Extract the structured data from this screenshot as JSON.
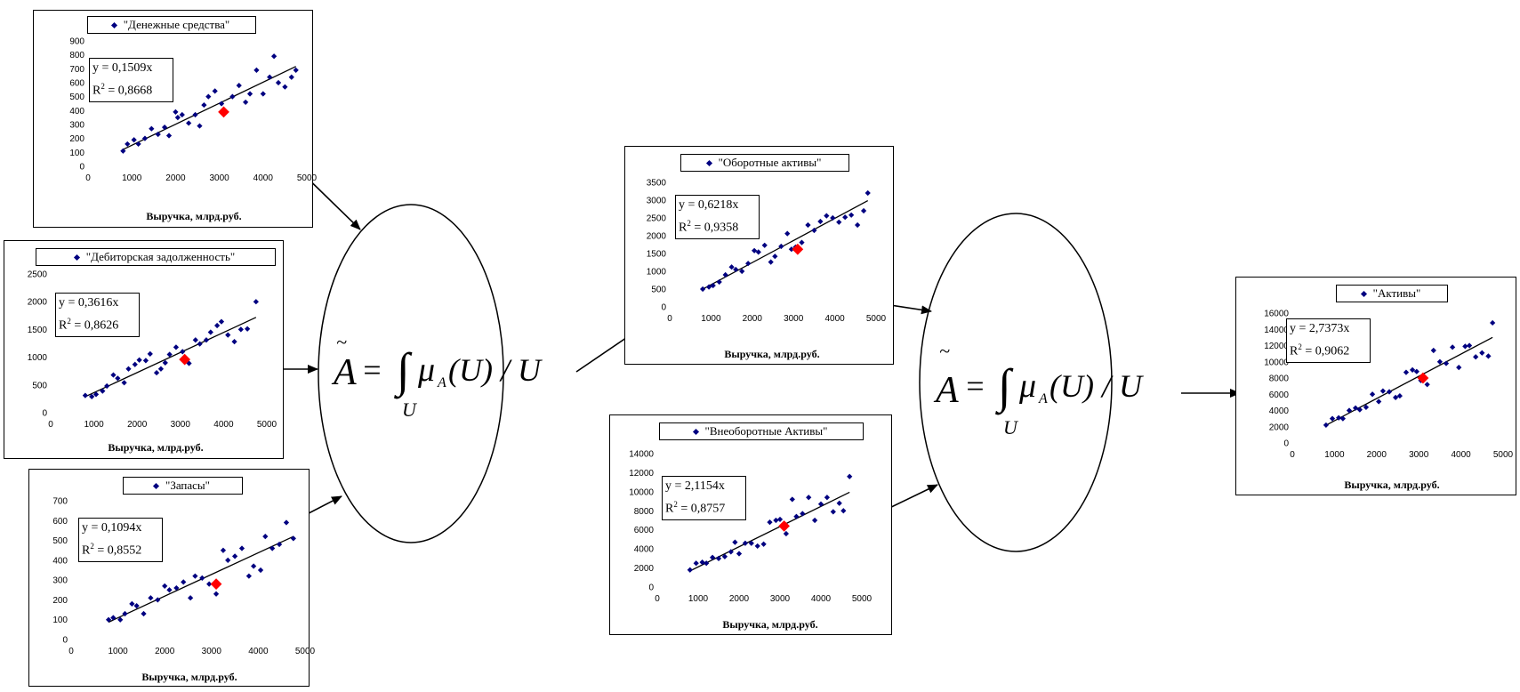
{
  "formula": {
    "tilde": "~",
    "left": "A",
    "eq": "=",
    "integral": "∫",
    "mu": "μ",
    "mu_sub": "A",
    "rest": "(U) / U",
    "lower": "U"
  },
  "colors": {
    "points": "#000080",
    "highlight": "#ff0000",
    "line": "#000000"
  },
  "xlabel": "Выручка, млрд.руб.",
  "chart_data": [
    {
      "type": "scatter",
      "legend": "\"Денежные средства\"",
      "xlabel": "Выручка, млрд.руб.",
      "xlim": [
        0,
        5000
      ],
      "xticks": [
        0,
        1000,
        2000,
        3000,
        4000,
        5000
      ],
      "ylim": [
        0,
        900
      ],
      "yticks": [
        0,
        100,
        200,
        300,
        400,
        500,
        600,
        700,
        800,
        900
      ],
      "trend": {
        "eq": "y = 0,1509x",
        "r2_label": "R",
        "r2_value": " = 0,8668",
        "slope": 0.1509
      },
      "x": [
        800,
        900,
        1050,
        1150,
        1300,
        1450,
        1600,
        1750,
        1850,
        2000,
        2050,
        2150,
        2300,
        2450,
        2550,
        2650,
        2750,
        2900,
        3050,
        3300,
        3450,
        3600,
        3700,
        3850,
        4000,
        4150,
        4250,
        4350,
        4500,
        4650,
        4750
      ],
      "y": [
        110,
        160,
        190,
        160,
        200,
        270,
        230,
        280,
        220,
        390,
        350,
        370,
        310,
        370,
        290,
        440,
        500,
        540,
        450,
        500,
        580,
        460,
        520,
        690,
        520,
        640,
        790,
        600,
        570,
        640,
        690
      ],
      "highlight": {
        "x": 3100,
        "y": 390
      }
    },
    {
      "type": "scatter",
      "legend": "\"Дебиторская задолженность\"",
      "xlabel": "Выручка, млрд.руб.",
      "xlim": [
        0,
        5000
      ],
      "xticks": [
        0,
        1000,
        2000,
        3000,
        4000,
        5000
      ],
      "ylim": [
        0,
        2500
      ],
      "yticks": [
        0,
        500,
        1000,
        1500,
        2000,
        2500
      ],
      "trend": {
        "eq": "y = 0,3616x",
        "r2_label": "R",
        "r2_value": " = 0,8626",
        "slope": 0.3616
      },
      "x": [
        800,
        950,
        1050,
        1200,
        1300,
        1450,
        1550,
        1700,
        1800,
        1950,
        2050,
        2200,
        2300,
        2450,
        2550,
        2650,
        2750,
        2900,
        3050,
        3200,
        3350,
        3450,
        3600,
        3700,
        3850,
        3950,
        4100,
        4250,
        4400,
        4550,
        4750
      ],
      "y": [
        310,
        290,
        330,
        390,
        480,
        680,
        620,
        540,
        790,
        870,
        950,
        940,
        1060,
        720,
        790,
        900,
        1050,
        1180,
        1100,
        890,
        1310,
        1240,
        1310,
        1450,
        1570,
        1640,
        1400,
        1280,
        1500,
        1510,
        2000
      ],
      "highlight": {
        "x": 3100,
        "y": 960
      }
    },
    {
      "type": "scatter",
      "legend": "\"Запасы\"",
      "xlabel": "Выручка, млрд.руб.",
      "xlim": [
        0,
        5000
      ],
      "xticks": [
        0,
        1000,
        2000,
        3000,
        4000,
        5000
      ],
      "ylim": [
        0,
        700
      ],
      "yticks": [
        0,
        100,
        200,
        300,
        400,
        500,
        600,
        700
      ],
      "trend": {
        "eq": "y = 0,1094x",
        "r2_label": "R",
        "r2_value": " = 0,8552",
        "slope": 0.1094
      },
      "x": [
        800,
        900,
        1050,
        1150,
        1300,
        1400,
        1550,
        1700,
        1850,
        2000,
        2100,
        2250,
        2400,
        2550,
        2650,
        2800,
        2950,
        3100,
        3250,
        3350,
        3500,
        3650,
        3800,
        3900,
        4050,
        4150,
        4300,
        4450,
        4600,
        4750
      ],
      "y": [
        100,
        110,
        100,
        130,
        180,
        170,
        130,
        210,
        200,
        270,
        250,
        260,
        290,
        210,
        320,
        310,
        280,
        230,
        450,
        400,
        420,
        460,
        320,
        370,
        350,
        520,
        460,
        480,
        590,
        510
      ],
      "highlight": {
        "x": 3100,
        "y": 280
      }
    },
    {
      "type": "scatter",
      "legend": "\"Оборотные активы\"",
      "xlabel": "Выручка, млрд.руб.",
      "xlim": [
        0,
        5000
      ],
      "xticks": [
        0,
        1000,
        2000,
        3000,
        4000,
        5000
      ],
      "ylim": [
        0,
        3500
      ],
      "yticks": [
        0,
        500,
        1000,
        1500,
        2000,
        2500,
        3000,
        3500
      ],
      "trend": {
        "eq": "y = 0,6218x",
        "r2_label": "R",
        "r2_value": " = 0,9358",
        "slope": 0.6218
      },
      "x": [
        800,
        950,
        1050,
        1200,
        1350,
        1500,
        1600,
        1750,
        1900,
        2050,
        2150,
        2300,
        2450,
        2550,
        2700,
        2850,
        2950,
        3050,
        3200,
        3350,
        3500,
        3650,
        3800,
        3950,
        4100,
        4250,
        4400,
        4550,
        4700,
        4800
      ],
      "y": [
        500,
        560,
        600,
        700,
        900,
        1120,
        1050,
        1000,
        1220,
        1580,
        1540,
        1730,
        1260,
        1420,
        1700,
        2060,
        1620,
        1680,
        1810,
        2300,
        2150,
        2400,
        2560,
        2500,
        2380,
        2520,
        2580,
        2300,
        2700,
        3200
      ],
      "highlight": {
        "x": 3100,
        "y": 1620
      }
    },
    {
      "type": "scatter",
      "legend": "\"Внеоборотные Активы\"",
      "xlabel": "Выручка, млрд.руб.",
      "xlim": [
        0,
        5000
      ],
      "xticks": [
        0,
        1000,
        2000,
        3000,
        4000,
        5000
      ],
      "ylim": [
        0,
        14000
      ],
      "yticks": [
        0,
        2000,
        4000,
        6000,
        8000,
        10000,
        12000,
        14000
      ],
      "trend": {
        "eq": "y = 2,1154x",
        "r2_label": "R",
        "r2_value": " = 0,8757",
        "slope": 2.1154
      },
      "x": [
        800,
        950,
        1100,
        1200,
        1350,
        1500,
        1650,
        1800,
        1900,
        2000,
        2150,
        2300,
        2450,
        2600,
        2750,
        2900,
        3000,
        3150,
        3300,
        3400,
        3550,
        3700,
        3850,
        4000,
        4150,
        4300,
        4450,
        4550,
        4700
      ],
      "y": [
        1800,
        2500,
        2600,
        2500,
        3100,
        3000,
        3200,
        3700,
        4700,
        3500,
        4600,
        4600,
        4300,
        4500,
        6800,
        7000,
        7100,
        5600,
        9200,
        7400,
        7700,
        9400,
        7000,
        8700,
        9400,
        7900,
        8800,
        8000,
        11600
      ],
      "highlight": {
        "x": 3100,
        "y": 6400
      }
    },
    {
      "type": "scatter",
      "legend": "\"Активы\"",
      "xlabel": "Выручка, млрд.руб.",
      "xlim": [
        0,
        5000
      ],
      "xticks": [
        0,
        1000,
        2000,
        3000,
        4000,
        5000
      ],
      "ylim": [
        0,
        16000
      ],
      "yticks": [
        0,
        2000,
        4000,
        6000,
        8000,
        10000,
        12000,
        14000,
        16000
      ],
      "trend": {
        "eq": "y = 2,7373x",
        "r2_label": "R",
        "r2_value": " = 0,9062",
        "slope": 2.7373
      },
      "x": [
        800,
        950,
        1100,
        1200,
        1350,
        1500,
        1600,
        1750,
        1900,
        2050,
        2150,
        2300,
        2450,
        2550,
        2700,
        2850,
        2950,
        3050,
        3200,
        3350,
        3500,
        3650,
        3800,
        3950,
        4100,
        4200,
        4350,
        4500,
        4650,
        4750
      ],
      "y": [
        2200,
        3000,
        3100,
        3000,
        4000,
        4300,
        4100,
        4400,
        6000,
        5100,
        6400,
        6300,
        5600,
        5800,
        8700,
        9000,
        8800,
        7700,
        7200,
        11400,
        10000,
        9800,
        11800,
        9300,
        11900,
        12000,
        10600,
        11100,
        10700,
        14800
      ],
      "highlight": {
        "x": 3100,
        "y": 8000
      }
    }
  ]
}
